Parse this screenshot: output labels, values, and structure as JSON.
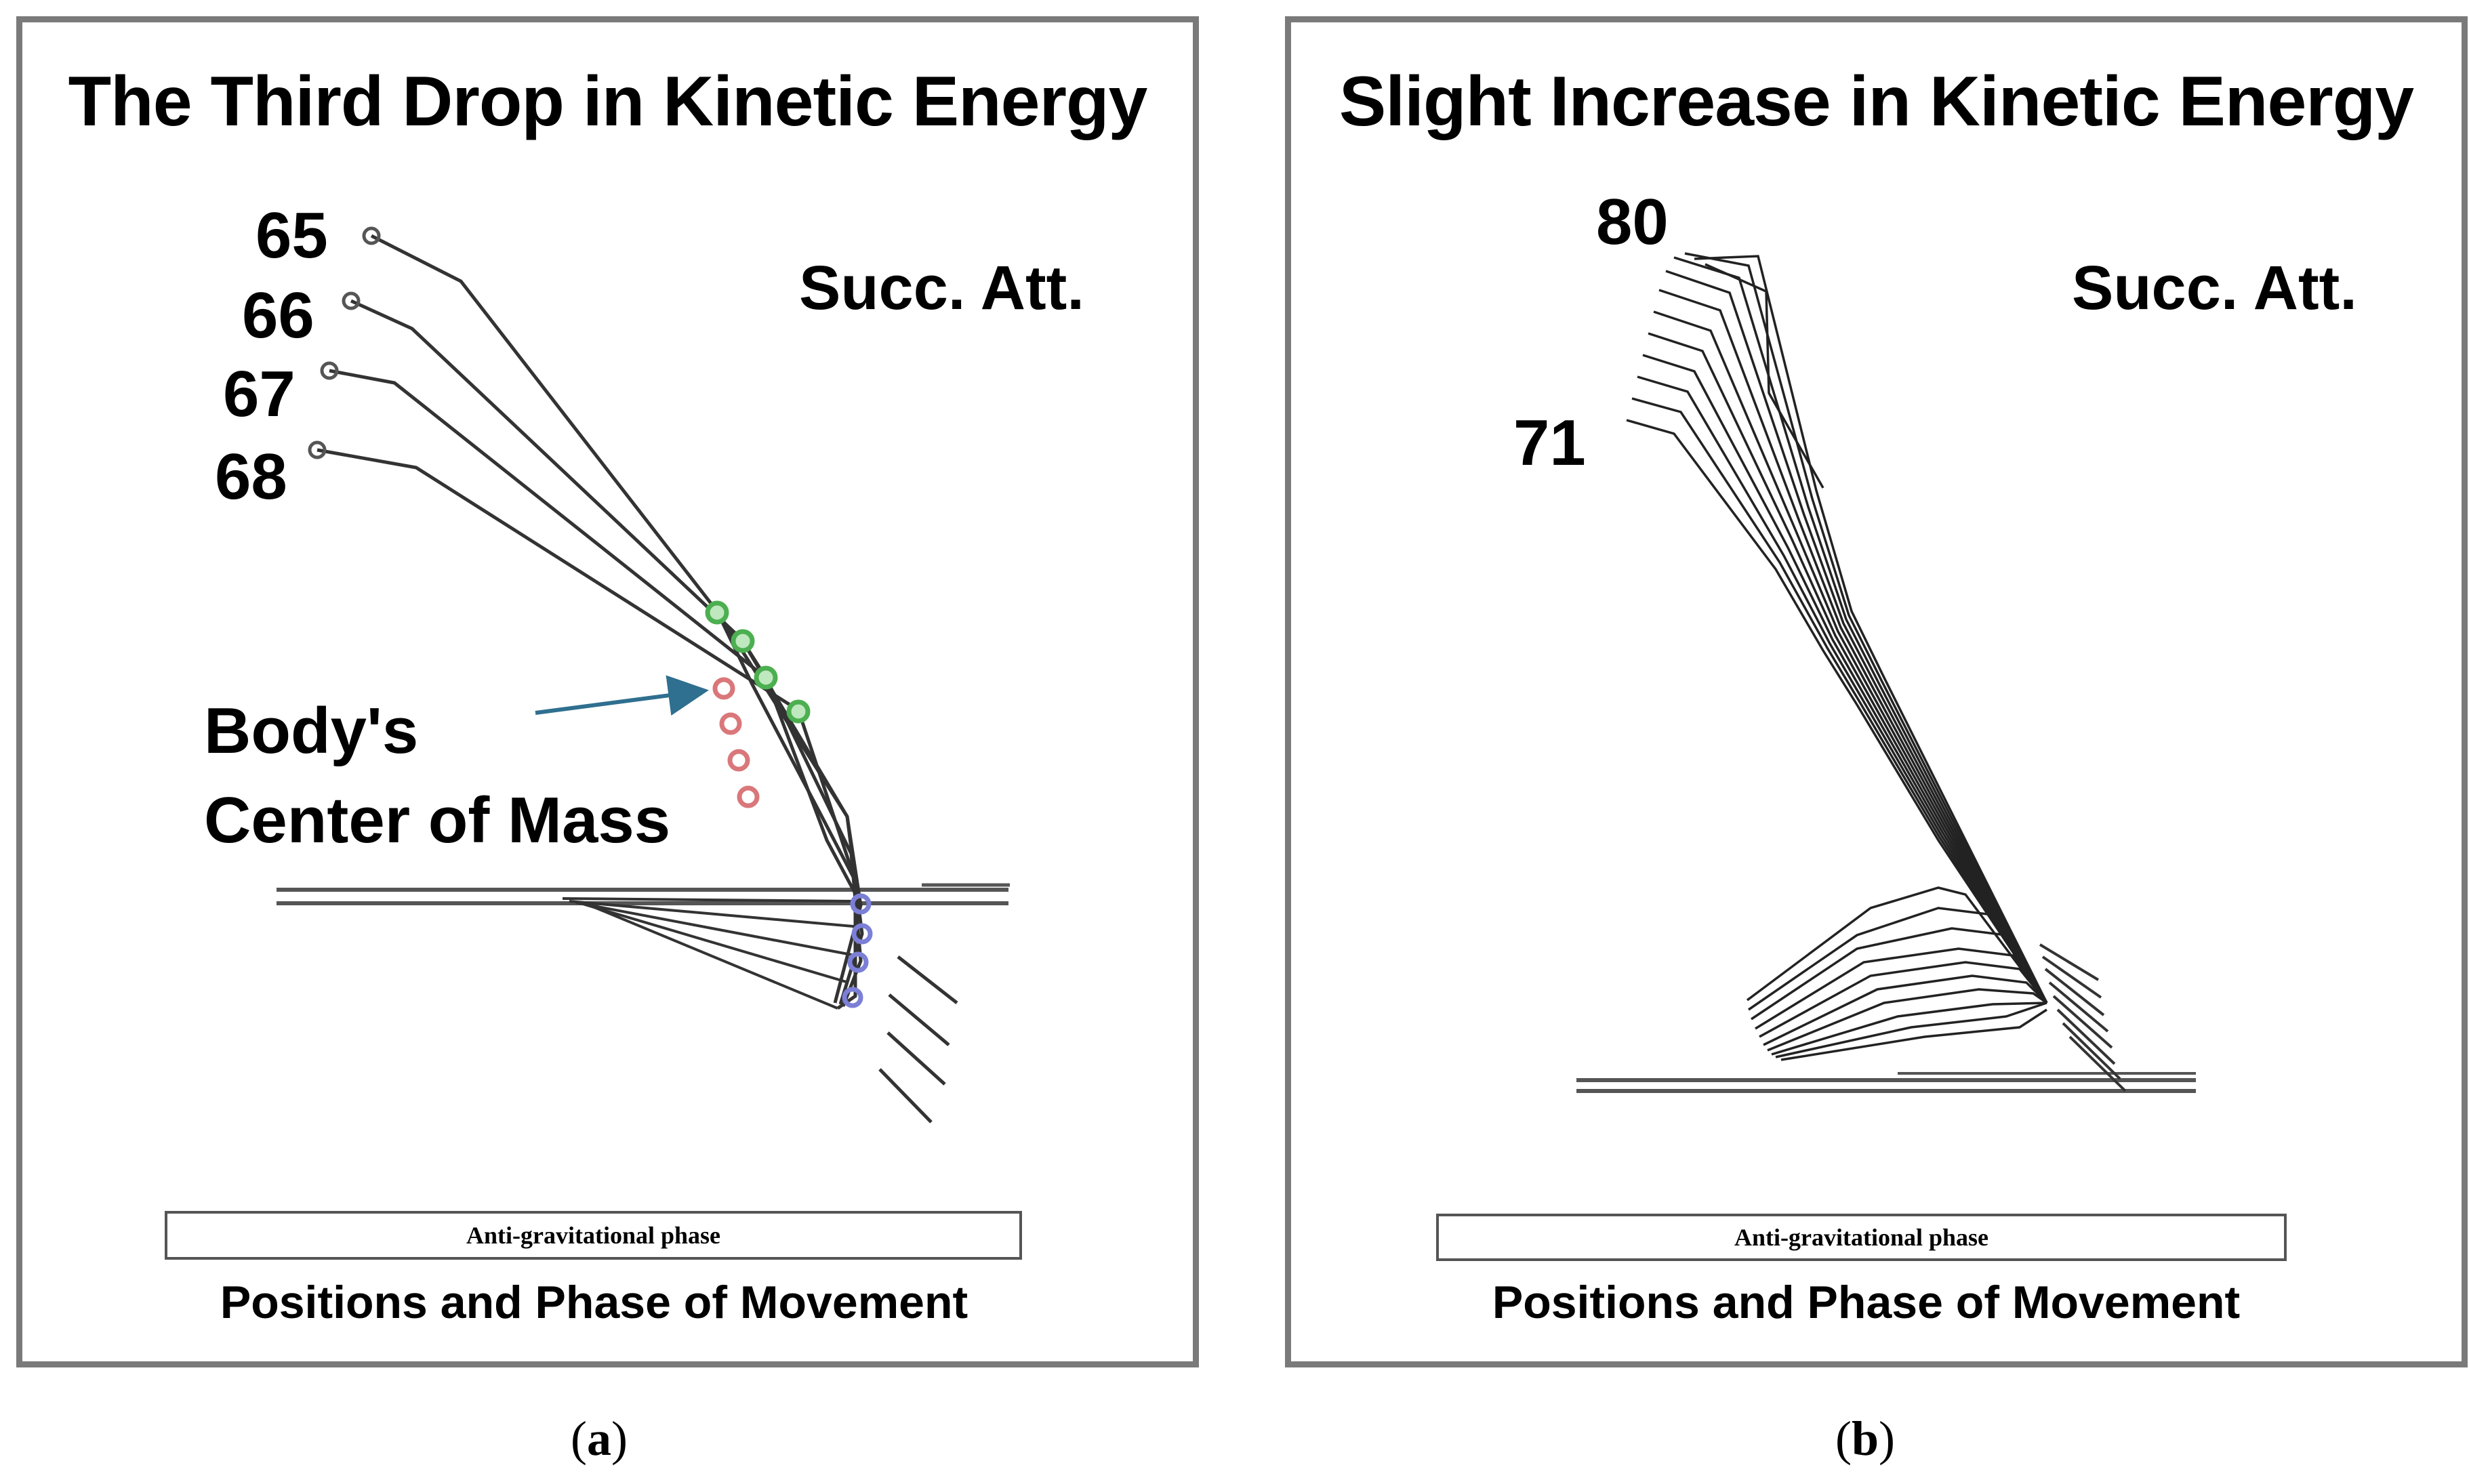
{
  "panels": [
    {
      "id": "a",
      "title": "The Third Drop in Kinetic Energy",
      "attempt_label": "Succ. Att.",
      "frame_labels": [
        "65",
        "66",
        "67",
        "68"
      ],
      "annotation_line1": "Body's",
      "annotation_line2": "Center of Mass",
      "phase_label": "Anti-gravitational phase",
      "axis_label": "Positions and Phase of Movement",
      "caption": "a"
    },
    {
      "id": "b",
      "title": "Slight Increase in Kinetic Energy",
      "attempt_label": "Succ. Att.",
      "frame_labels": [
        "80",
        "71"
      ],
      "phase_label": "Anti-gravitational phase",
      "axis_label": "Positions and Phase of Movement",
      "caption": "b"
    }
  ],
  "colors": {
    "stick": "#333333",
    "joint_green": "#4caf50",
    "com_red": "#d9777a",
    "joint_blue": "#7b7fd6",
    "arrow": "#2f6f8f",
    "border": "#7a7a7a"
  }
}
